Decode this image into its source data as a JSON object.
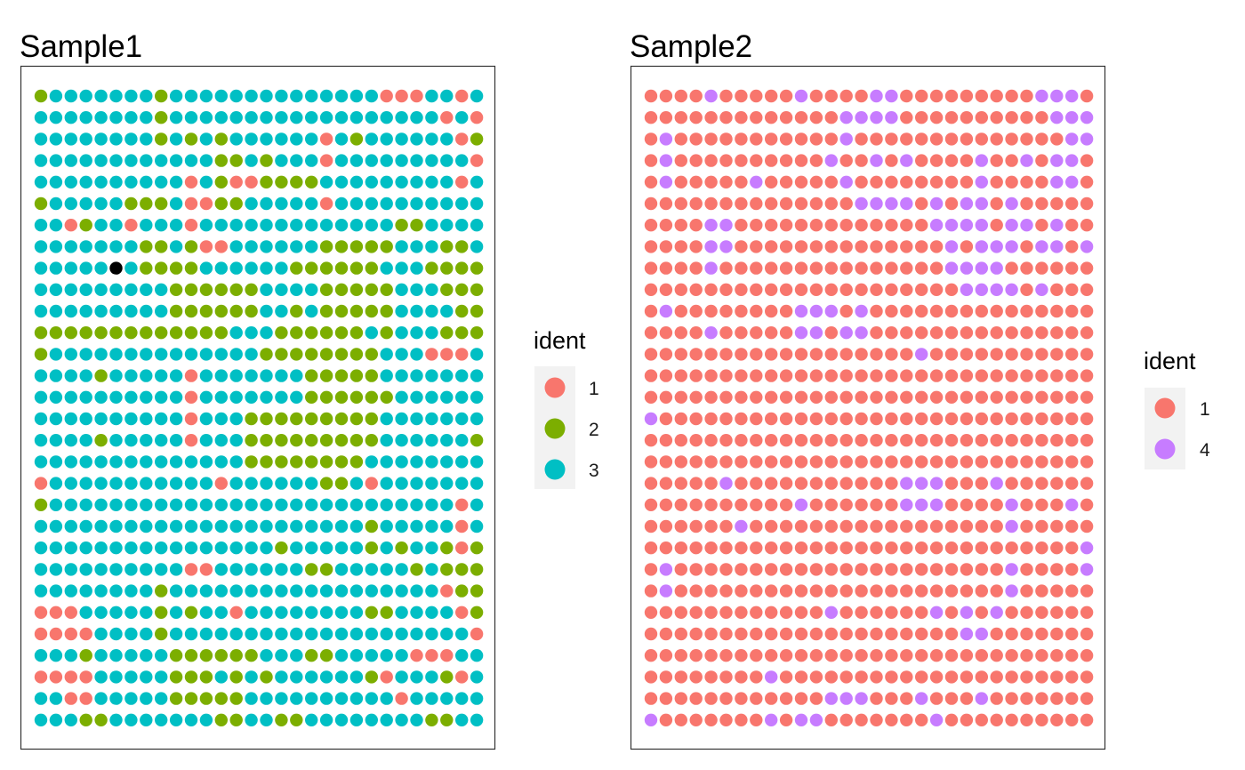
{
  "chart_data": [
    {
      "type": "scatter",
      "title": "Sample1",
      "legend": {
        "title": "ident",
        "position": "right",
        "entries": [
          "1",
          "2",
          "3"
        ]
      },
      "colors": {
        "1": "#F8766D",
        "2": "#7CAE00",
        "3": "#00BFC4"
      },
      "grid": false,
      "xlim": [
        1,
        30
      ],
      "ylim": [
        1,
        30
      ],
      "cols": 30,
      "rows": 30,
      "ident_rows": [
        "233333332333333333333331113313",
        "333333332333333333333333333131",
        "333333332323233333313233333312",
        "333333333333223233313333333331",
        "333333333313211222233333333313",
        "233333222311223333313333333333",
        "331233133313333333333333223333",
        "333333322321133333322222333223",
        "333335322223333332222223332222",
        "333333333222222333322222333222",
        "333333333222222332322222333322",
        "222222222222233322222232333222",
        "233333333333333222222223331113",
        "333323333313333333222223333333",
        "333333333313333333222222333333",
        "333333333313332222222223333333",
        "333323333313332222222223333332",
        "333333333333332222222233333333",
        "133333333333133333322313333333",
        "233333333333333333333333333313",
        "333333333333333333333323333313",
        "333333333333333323333323233212",
        "333333333311333333223333323222",
        "333333332333333333333333333122",
        "111333332323313333333322333312",
        "111133332333333333333333333331",
        "333233333222222333223333311133",
        "111133333222323233333321333213",
        "331133333222223333333333133333",
        "333223333333223322333333332233"
      ]
    },
    {
      "type": "scatter",
      "title": "Sample2",
      "legend": {
        "title": "ident",
        "position": "right",
        "entries": [
          "1",
          "4"
        ]
      },
      "colors": {
        "1": "#F8766D",
        "4": "#C77CFF"
      },
      "grid": false,
      "xlim": [
        1,
        30
      ],
      "ylim": [
        1,
        30
      ],
      "cols": 30,
      "rows": 30,
      "ident_rows": [
        "111141111141111441111111114441",
        "111111111111144441111111111444",
        "141111111111141111111111111144",
        "141111111111411414111141141441",
        "141111141111141111111141111441",
        "111111111111114444141441411111",
        "111144111111111111144441441411",
        "111144111111111111114144414414",
        "111141111111111111114444111111",
        "111111111111111111111444414111",
        "141111111144414111111111111111",
        "111141111144144111111111111111",
        "111111111111111111411111111111",
        "111111111111111111111111111111",
        "111111111111111111111111111111",
        "411111111111111111111111111111",
        "111111111111111111111111111111",
        "111111111111111111111111111111",
        "111114111111111114441114111111",
        "111111111141111114441111411141",
        "111111411111111111111111411111",
        "111111111111111111111111111114",
        "141111111111111111111111411114",
        "141111111111111111111111411111",
        "111111111111411111141414111111",
        "111111111111111111111441111111",
        "111111111111111111111111111111",
        "111111114111111111111111111111",
        "111111111111444111411141111111",
        "411111114144111111141111111111"
      ]
    }
  ]
}
